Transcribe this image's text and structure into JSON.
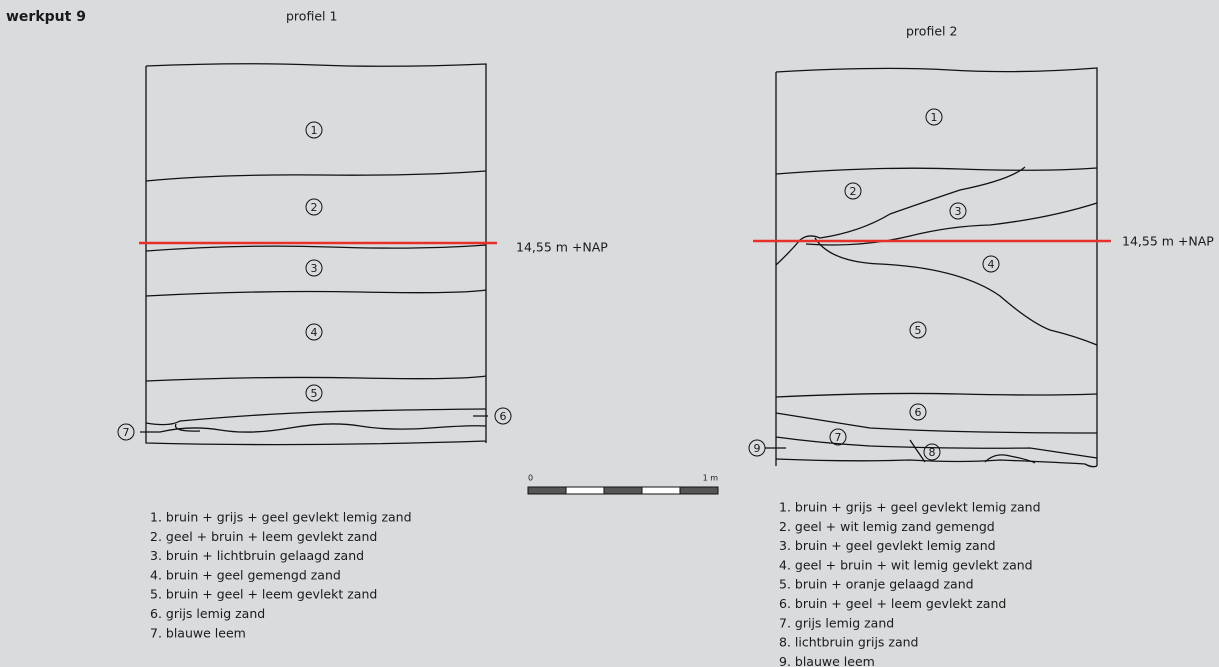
{
  "header": {
    "title": "werkput 9"
  },
  "profiles": [
    {
      "title": "profiel 1",
      "level_label": "14,55 m +NAP",
      "layer_labels": [
        "1",
        "2",
        "3",
        "4",
        "5",
        "6",
        "7"
      ],
      "legend": [
        "1. bruin + grijs + geel gevlekt lemig zand",
        "2. geel + bruin + leem gevlekt zand",
        "3. bruin + lichtbruin gelaagd zand",
        "4. bruin + geel gemengd zand",
        "5. bruin + geel + leem gevlekt zand",
        "6. grijs lemig zand",
        "7. blauwe leem"
      ]
    },
    {
      "title": "profiel 2",
      "level_label": "14,55 m +NAP",
      "layer_labels": [
        "1",
        "2",
        "3",
        "4",
        "5",
        "6",
        "7",
        "8",
        "9"
      ],
      "legend": [
        "1. bruin + grijs + geel gevlekt lemig zand",
        "2. geel + wit lemig zand gemengd",
        "3. bruin + geel gevlekt lemig zand",
        "4. geel + bruin + wit lemig gevlekt zand",
        "5. bruin + oranje gelaagd zand",
        "6. bruin + geel + leem gevlekt zand",
        "7. grijs lemig zand",
        "8. lichtbruin grijs zand",
        "9. blauwe leem"
      ]
    }
  ],
  "scale": {
    "start": "0",
    "end": "1 m"
  }
}
